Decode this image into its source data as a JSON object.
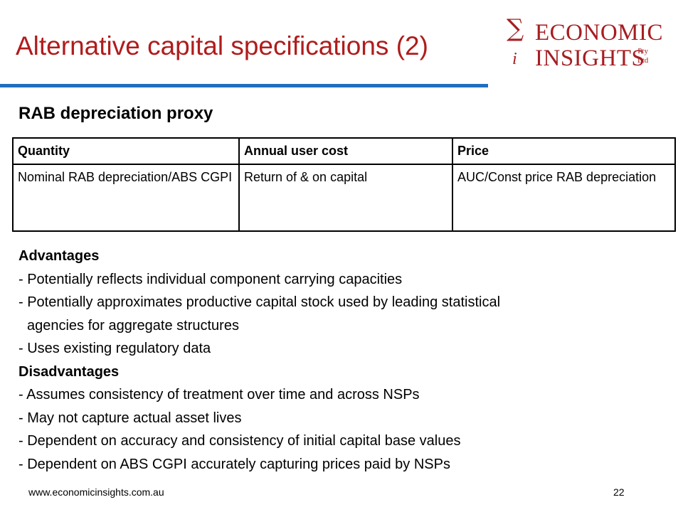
{
  "slide": {
    "title": "Alternative capital specifications (2)",
    "subtitle": "RAB depreciation proxy"
  },
  "logo": {
    "symbol": "∑",
    "symbol_sub": "i",
    "line1": "ECONOMIC",
    "line2": "INSIGHTS",
    "suffix_top": "Pty",
    "suffix_bottom": "Ltd"
  },
  "table": {
    "headers": [
      "Quantity",
      "Annual user cost",
      "Price"
    ],
    "rows": [
      [
        "Nominal RAB depreciation/ABS CGPI",
        "Return of & on capital",
        "AUC/Const price RAB depreciation"
      ]
    ]
  },
  "advantages": {
    "heading": "Advantages",
    "items": [
      "- Potentially reflects individual component carrying capacities",
      "- Potentially approximates productive capital stock used by leading statistical",
      "agencies for aggregate structures",
      "- Uses existing regulatory data"
    ]
  },
  "disadvantages": {
    "heading": "Disadvantages",
    "items": [
      "- Assumes consistency of treatment over time and across NSPs",
      "- May not capture actual asset lives",
      "- Dependent on accuracy and consistency of initial capital base values",
      "- Dependent on ABS CGPI accurately capturing prices paid by NSPs"
    ]
  },
  "footer": {
    "url": "www.economicinsights.com.au",
    "page": "22"
  },
  "colors": {
    "title": "#b01c1c",
    "logo": "#a61e22",
    "rule": "#1f6fbd"
  }
}
